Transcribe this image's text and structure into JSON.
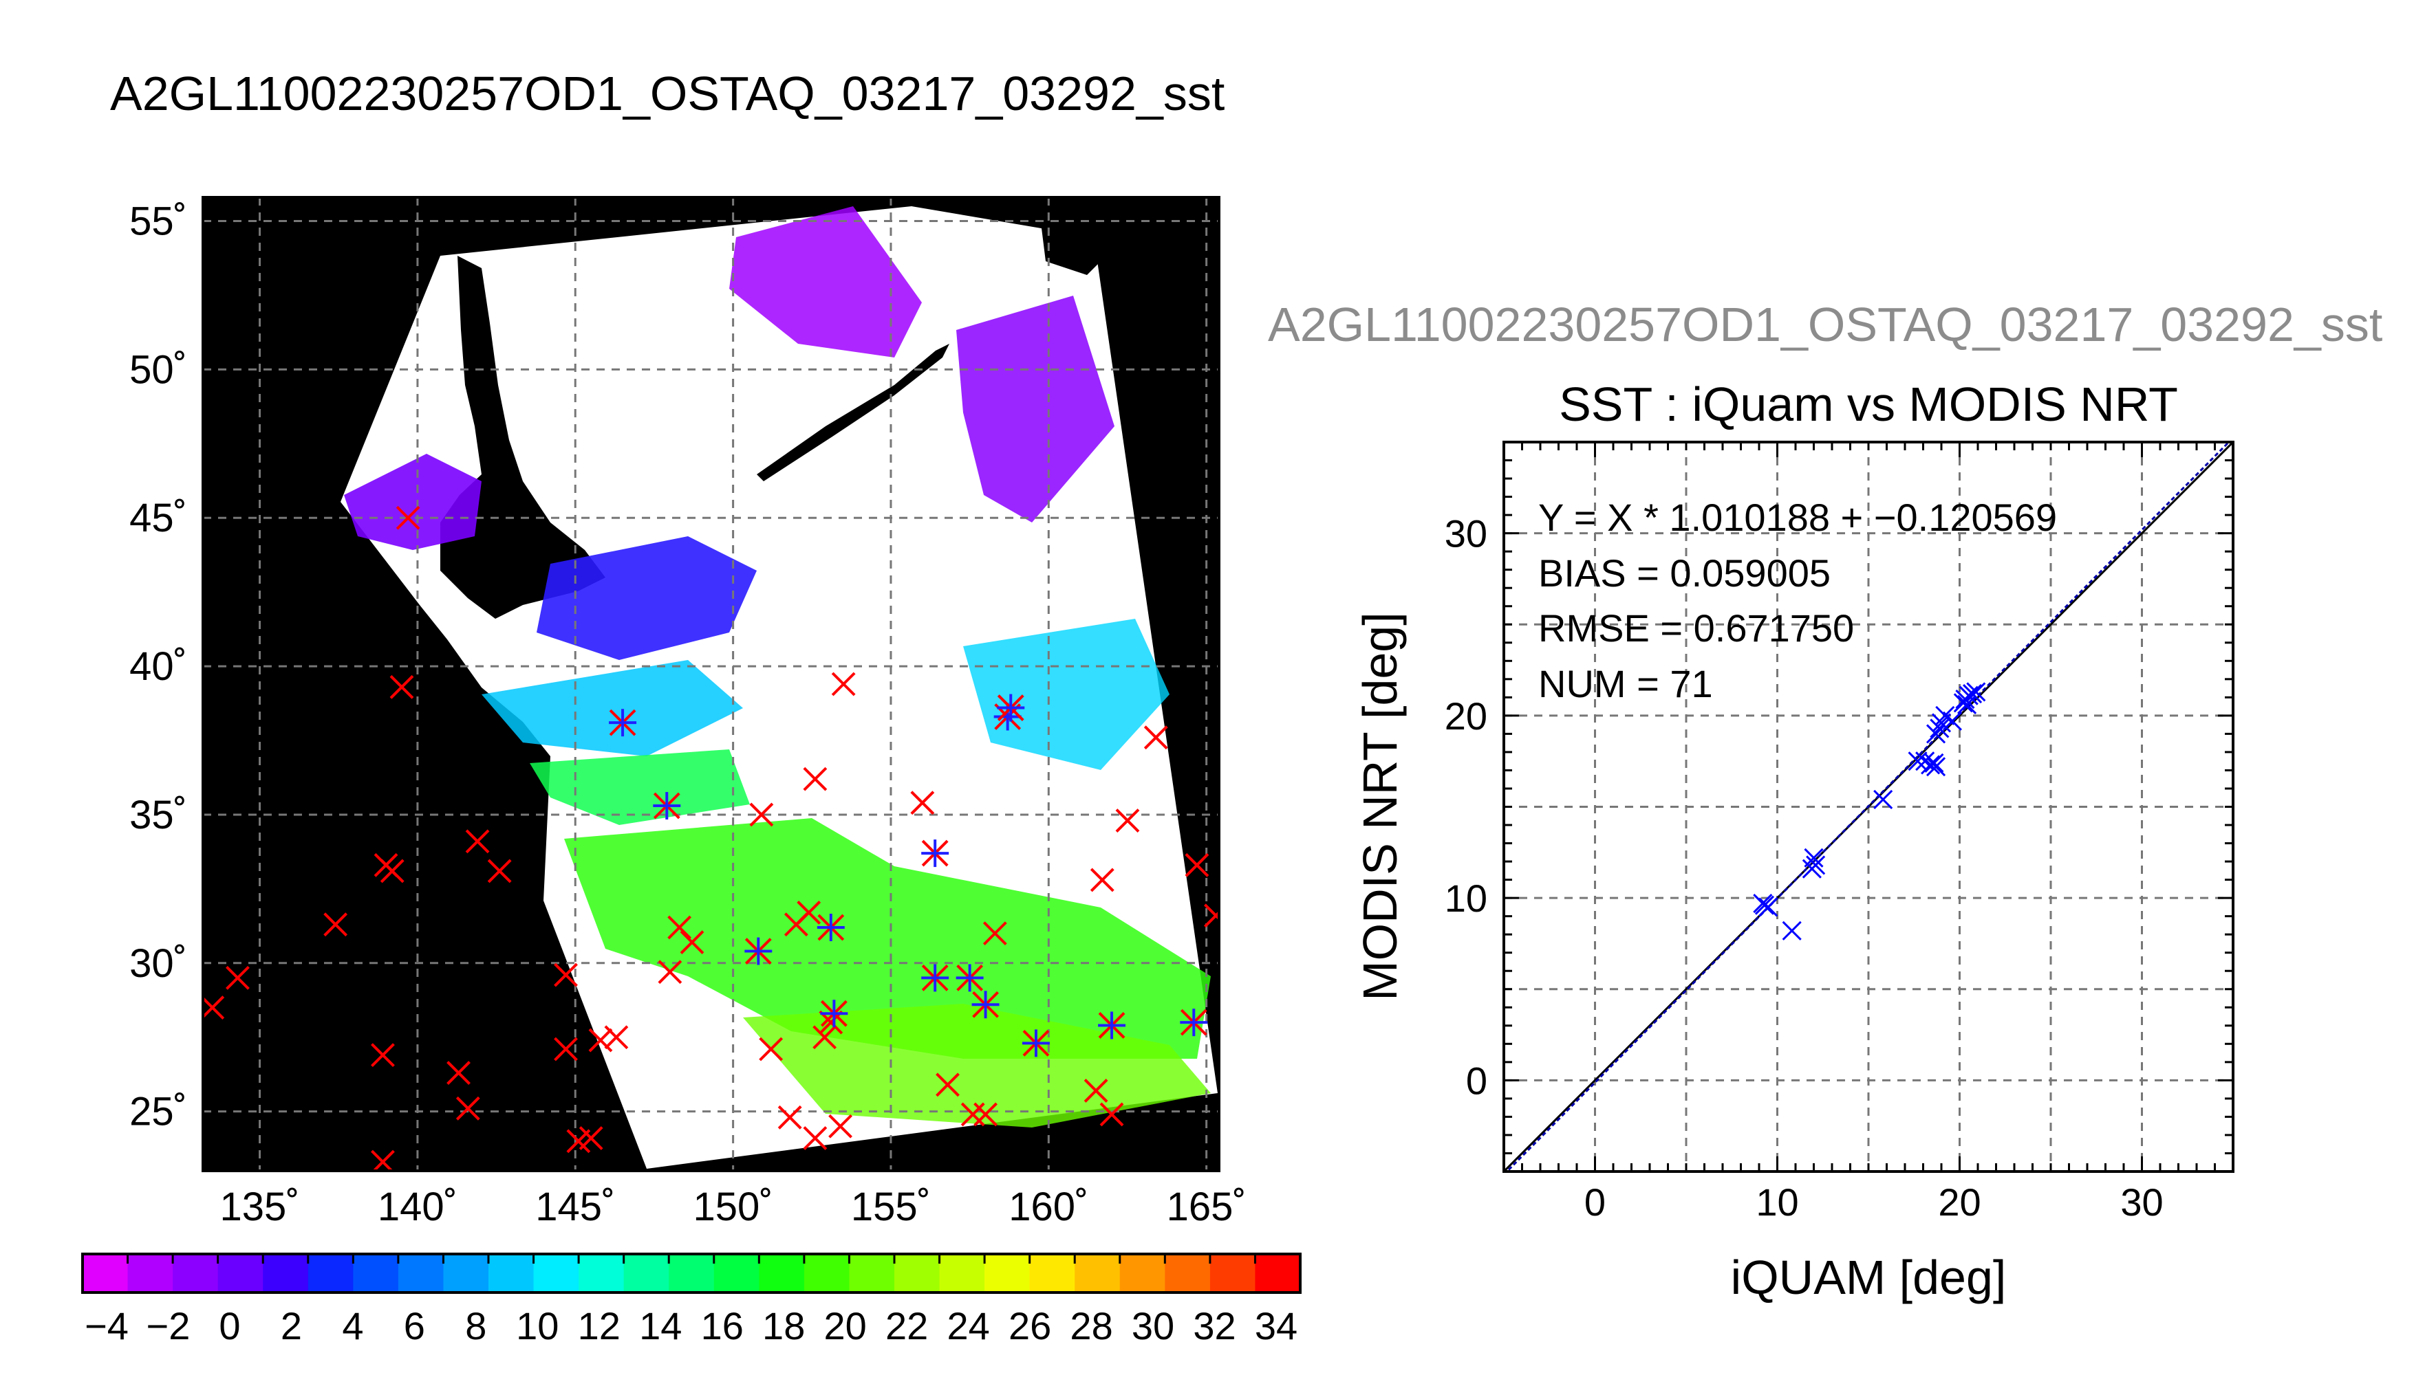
{
  "figure_title": "A2GL11002230257OD1_OSTAQ_03217_03292_sst",
  "chart_data": [
    {
      "type": "heatmap",
      "subtype": "satellite-map",
      "longitude_ticks": [
        "135˚",
        "140˚",
        "145˚",
        "150˚",
        "155˚",
        "160˚",
        "165˚"
      ],
      "latitude_ticks": [
        "55˚",
        "50˚",
        "45˚",
        "40˚",
        "35˚",
        "30˚",
        "25˚"
      ],
      "xlim": [
        133.2,
        165.4
      ],
      "ylim": [
        23.0,
        55.8
      ],
      "grid": true,
      "colorbar": {
        "colors": [
          "#e000ff",
          "#b000ff",
          "#8c00ff",
          "#6a00ff",
          "#3c00ff",
          "#0a28ff",
          "#0050ff",
          "#0078ff",
          "#00a0ff",
          "#00c8ff",
          "#00ecff",
          "#00ffd8",
          "#00ffa0",
          "#00ff70",
          "#00ff40",
          "#10ff10",
          "#40ff00",
          "#70ff00",
          "#a0ff00",
          "#c8ff00",
          "#ecff00",
          "#ffe800",
          "#ffc000",
          "#ff9600",
          "#ff6a00",
          "#ff3c00",
          "#ff0000"
        ],
        "tick_labels": [
          "−4",
          "−2",
          "0",
          "2",
          "4",
          "6",
          "8",
          "10",
          "12",
          "14",
          "16",
          "18",
          "20",
          "22",
          "24",
          "26",
          "28",
          "30",
          "32",
          "34"
        ]
      },
      "iquam_points_lonlat": [
        [
          139.7,
          45.0
        ],
        [
          139.5,
          39.3
        ],
        [
          139.0,
          33.3
        ],
        [
          139.2,
          33.1
        ],
        [
          137.4,
          31.3
        ],
        [
          134.3,
          29.5
        ],
        [
          133.5,
          28.5
        ],
        [
          138.9,
          26.9
        ],
        [
          138.9,
          23.3
        ],
        [
          141.9,
          34.1
        ],
        [
          142.6,
          33.1
        ],
        [
          141.3,
          26.3
        ],
        [
          141.6,
          25.1
        ],
        [
          144.7,
          29.6
        ],
        [
          144.7,
          27.1
        ],
        [
          145.1,
          24.0
        ],
        [
          145.5,
          24.1
        ],
        [
          145.8,
          27.4
        ],
        [
          146.3,
          27.5
        ],
        [
          148.0,
          29.7
        ],
        [
          148.3,
          31.2
        ],
        [
          148.7,
          30.7
        ],
        [
          150.9,
          35.0
        ],
        [
          152.0,
          31.3
        ],
        [
          152.4,
          31.7
        ],
        [
          152.6,
          36.2
        ],
        [
          153.5,
          39.4
        ],
        [
          151.2,
          27.1
        ],
        [
          152.9,
          27.5
        ],
        [
          153.1,
          28.0
        ],
        [
          151.8,
          24.8
        ],
        [
          152.6,
          24.1
        ],
        [
          153.4,
          24.5
        ],
        [
          156.0,
          35.4
        ],
        [
          158.3,
          31.0
        ],
        [
          156.8,
          25.9
        ],
        [
          157.6,
          24.9
        ],
        [
          158.0,
          24.9
        ],
        [
          161.5,
          25.7
        ],
        [
          162.0,
          24.9
        ],
        [
          161.7,
          32.8
        ],
        [
          162.5,
          34.8
        ],
        [
          163.4,
          37.6
        ],
        [
          164.7,
          33.3
        ],
        [
          165.3,
          31.6
        ]
      ],
      "matched_points_lonlat": [
        [
          146.5,
          38.1
        ],
        [
          147.9,
          35.3
        ],
        [
          150.8,
          30.4
        ],
        [
          153.1,
          31.2
        ],
        [
          153.2,
          28.3
        ],
        [
          156.4,
          33.7
        ],
        [
          156.4,
          29.5
        ],
        [
          157.5,
          29.5
        ],
        [
          158.0,
          28.6
        ],
        [
          158.7,
          38.3
        ],
        [
          158.8,
          38.6
        ],
        [
          159.6,
          27.3
        ],
        [
          162.0,
          27.9
        ],
        [
          164.6,
          28.0
        ]
      ]
    },
    {
      "type": "scatter",
      "header": "A2GL11002230257OD1_OSTAQ_03217_03292_sst",
      "title": "SST : iQuam vs MODIS NRT",
      "xlabel": "iQUAM [deg]",
      "ylabel": "MODIS NRT [deg]",
      "xlim": [
        -5,
        35
      ],
      "ylim": [
        -5,
        35
      ],
      "x_ticks": [
        "0",
        "10",
        "20",
        "30"
      ],
      "y_ticks": [
        "0",
        "10",
        "20",
        "30"
      ],
      "grid": true,
      "stats": [
        "Y = X * 1.010188 + −0.120569",
        "BIAS = 0.059005",
        "RMSE = 0.671750",
        "NUM = 71"
      ],
      "fit": {
        "slope": 1.010188,
        "intercept": -0.120569
      },
      "points": [
        [
          9.2,
          9.7
        ],
        [
          9.3,
          9.6
        ],
        [
          9.5,
          9.5
        ],
        [
          10.8,
          8.2
        ],
        [
          11.9,
          11.6
        ],
        [
          12.0,
          12.2
        ],
        [
          12.1,
          11.8
        ],
        [
          15.8,
          15.4
        ],
        [
          17.7,
          17.5
        ],
        [
          18.1,
          17.5
        ],
        [
          18.4,
          17.3
        ],
        [
          18.6,
          17.4
        ],
        [
          18.7,
          17.2
        ],
        [
          18.7,
          19.0
        ],
        [
          18.9,
          19.3
        ],
        [
          19.0,
          19.6
        ],
        [
          19.2,
          20.0
        ],
        [
          19.6,
          19.7
        ],
        [
          20.2,
          20.7
        ],
        [
          20.3,
          20.9
        ],
        [
          20.4,
          20.6
        ],
        [
          20.5,
          21.1
        ],
        [
          20.7,
          21.2
        ],
        [
          20.9,
          21.3
        ]
      ],
      "color": "#0000ff"
    }
  ]
}
